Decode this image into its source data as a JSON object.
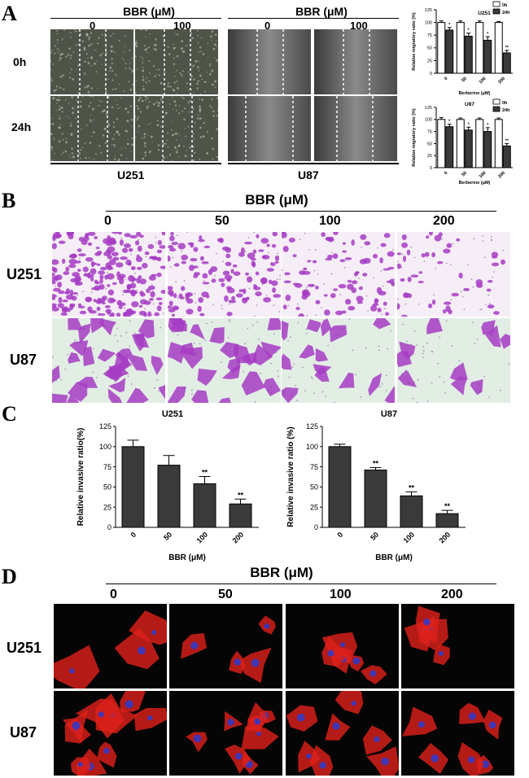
{
  "panels": {
    "a": "A",
    "b": "B",
    "c": "C",
    "d": "D"
  },
  "panel_a": {
    "treatment_header": "BBR (μM)",
    "dose_low": "0",
    "dose_high": "100",
    "row_labels": [
      "0h",
      "24h"
    ],
    "cell_lines": [
      "U251",
      "U87"
    ]
  },
  "panel_b": {
    "treatment_header": "BBR (μM)",
    "doses": [
      "0",
      "50",
      "100",
      "200"
    ],
    "row_labels": [
      "U251",
      "U87"
    ]
  },
  "panel_d": {
    "treatment_header": "BBR (μM)",
    "doses": [
      "0",
      "50",
      "100",
      "200"
    ],
    "row_labels": [
      "U251",
      "U87"
    ]
  },
  "colors": {
    "bar_dark": "#3a3a3a",
    "bar_white": "#ffffff",
    "stain_purple": "#a63cc4",
    "actin_red": "#e0201a",
    "nuclei_blue": "#2a3ad0"
  },
  "chart_data": [
    {
      "type": "bar",
      "title": "U251",
      "categories": [
        "0",
        "50",
        "100",
        "200"
      ],
      "xlabel": "Berberine (μM)",
      "ylabel": "Relative migratory ratio (%)",
      "ylim": [
        0,
        125
      ],
      "yticks": [
        "0",
        "25",
        "50",
        "75",
        "100",
        "125"
      ],
      "legend": "top-right",
      "series": [
        {
          "name": "0h",
          "values": [
            100,
            100,
            100,
            100
          ],
          "errors": [
            3,
            3,
            3,
            2
          ]
        },
        {
          "name": "24h",
          "values": [
            85,
            73,
            65,
            40
          ],
          "errors": [
            5,
            6,
            7,
            5
          ]
        }
      ],
      "annotations": [
        "*",
        "*",
        "*",
        "**"
      ]
    },
    {
      "type": "bar",
      "title": "U87",
      "categories": [
        "0",
        "50",
        "100",
        "200"
      ],
      "xlabel": "Berberine (μM)",
      "ylabel": "Relative migratory ratio (%)",
      "ylim": [
        0,
        125
      ],
      "yticks": [
        "0",
        "25",
        "50",
        "75",
        "100",
        "125"
      ],
      "legend": "top-right",
      "series": [
        {
          "name": "0h",
          "values": [
            100,
            100,
            100,
            100
          ],
          "errors": [
            4,
            3,
            3,
            3
          ]
        },
        {
          "name": "24h",
          "values": [
            85,
            78,
            75,
            45
          ],
          "errors": [
            5,
            6,
            8,
            5
          ]
        }
      ],
      "annotations": [
        "*",
        "*",
        "*",
        "**"
      ]
    },
    {
      "type": "bar",
      "title": "U251",
      "categories": [
        "0",
        "50",
        "100",
        "200"
      ],
      "xlabel": "BBR (μM)",
      "ylabel": "Relative invasive ratio(%)",
      "ylim": [
        0,
        125
      ],
      "yticks": [
        "0",
        "25",
        "50",
        "75",
        "100",
        "125"
      ],
      "series": [
        {
          "values": [
            100,
            77,
            54,
            29
          ],
          "errors": [
            8,
            12,
            9,
            6
          ]
        }
      ],
      "annotations": [
        "",
        "",
        "**",
        "**"
      ]
    },
    {
      "type": "bar",
      "title": "U87",
      "categories": [
        "0",
        "50",
        "100",
        "200"
      ],
      "xlabel": "BBR (μM)",
      "ylabel": "Relative invasive ratio (%)",
      "ylim": [
        0,
        125
      ],
      "yticks": [
        "0",
        "25",
        "50",
        "75",
        "100",
        "125"
      ],
      "series": [
        {
          "values": [
            100,
            71,
            39,
            17
          ],
          "errors": [
            3,
            3,
            5,
            4
          ]
        }
      ],
      "annotations": [
        "",
        "**",
        "**",
        "**"
      ]
    }
  ]
}
